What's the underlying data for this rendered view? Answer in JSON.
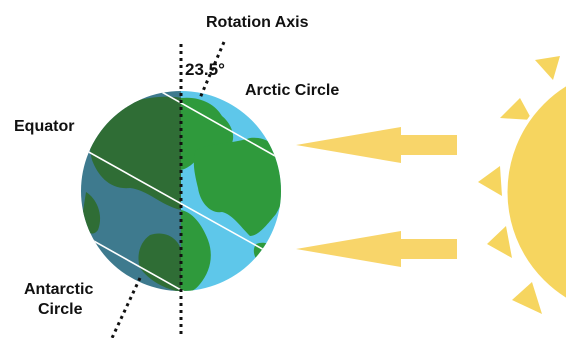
{
  "labels": {
    "rotation_axis": "Rotation Axis",
    "tilt_angle": "23.5°",
    "arctic_circle": "Arctic Circle",
    "equator": "Equator",
    "antarctic_circle_line1": "Antarctic",
    "antarctic_circle_line2": "Circle"
  },
  "colors": {
    "ocean_lit": "#5ec7ea",
    "ocean_dark": "#3e7a8e",
    "land_lit": "#2f9a3c",
    "land_dark": "#2f6d35",
    "arrow": "#f8d56a",
    "sun": "#f6d55f",
    "line": "#ffffff",
    "axis": "#111111"
  },
  "icons": {
    "earth": "earth-globe-icon",
    "sun": "sun-icon",
    "arrows": "sunlight-arrow-icon"
  }
}
